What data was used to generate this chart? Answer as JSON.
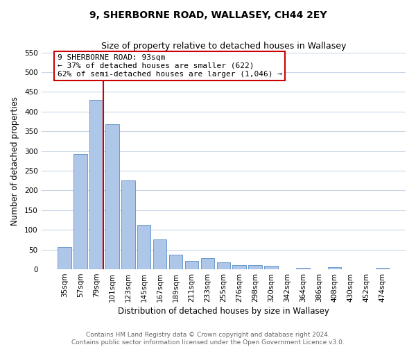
{
  "title": "9, SHERBORNE ROAD, WALLASEY, CH44 2EY",
  "subtitle": "Size of property relative to detached houses in Wallasey",
  "xlabel": "Distribution of detached houses by size in Wallasey",
  "ylabel": "Number of detached properties",
  "bar_labels": [
    "35sqm",
    "57sqm",
    "79sqm",
    "101sqm",
    "123sqm",
    "145sqm",
    "167sqm",
    "189sqm",
    "211sqm",
    "233sqm",
    "255sqm",
    "276sqm",
    "298sqm",
    "320sqm",
    "342sqm",
    "364sqm",
    "386sqm",
    "408sqm",
    "430sqm",
    "452sqm",
    "474sqm"
  ],
  "bar_values": [
    57,
    293,
    430,
    368,
    226,
    113,
    76,
    37,
    22,
    29,
    18,
    10,
    11,
    9,
    0,
    3,
    0,
    5,
    0,
    0,
    4
  ],
  "bar_color": "#aec6e8",
  "bar_edge_color": "#6699cc",
  "vline_color": "#cc0000",
  "annotation_line1": "9 SHERBORNE ROAD: 93sqm",
  "annotation_line2": "← 37% of detached houses are smaller (622)",
  "annotation_line3": "62% of semi-detached houses are larger (1,046) →",
  "annotation_box_color": "#ffffff",
  "annotation_box_edge_color": "#cc0000",
  "ylim": [
    0,
    550
  ],
  "yticks": [
    0,
    50,
    100,
    150,
    200,
    250,
    300,
    350,
    400,
    450,
    500,
    550
  ],
  "footer_line1": "Contains HM Land Registry data © Crown copyright and database right 2024.",
  "footer_line2": "Contains public sector information licensed under the Open Government Licence v3.0.",
  "bg_color": "#ffffff",
  "grid_color": "#c8d8e8",
  "title_fontsize": 10,
  "subtitle_fontsize": 9,
  "axis_label_fontsize": 8.5,
  "tick_fontsize": 7.5,
  "annotation_fontsize": 8,
  "footer_fontsize": 6.5
}
